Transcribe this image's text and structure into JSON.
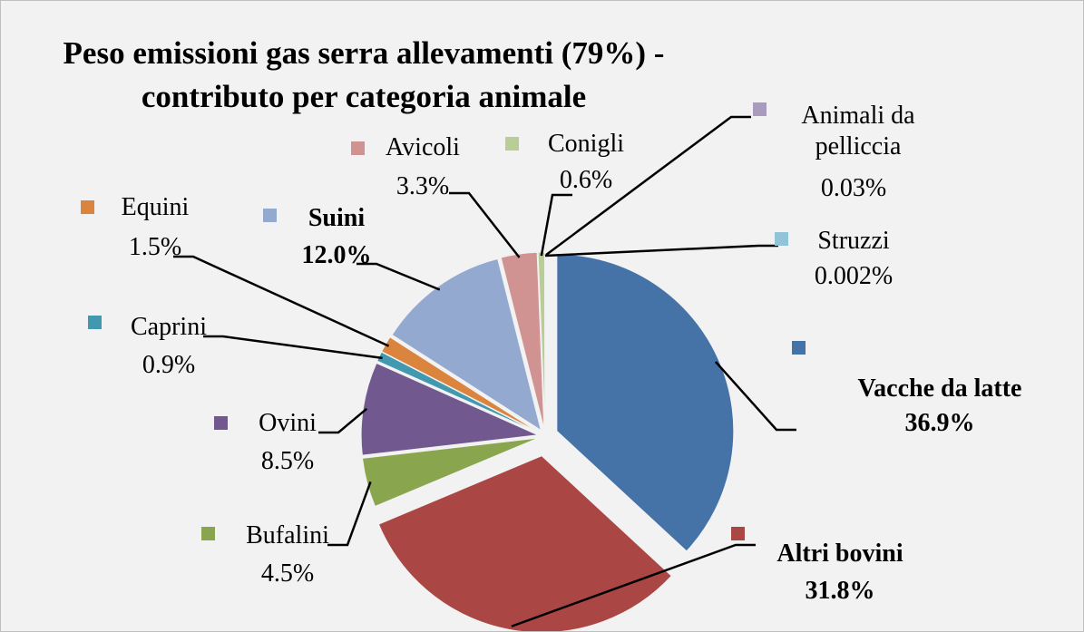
{
  "chart_data": {
    "type": "pie",
    "title": "Peso emissioni gas serra allevamenti (79%) - contributo per categoria animale",
    "categories": [
      "Vacche da latte",
      "Altri bovini",
      "Bufalini",
      "Ovini",
      "Caprini",
      "Equini",
      "Suini",
      "Avicoli",
      "Conigli",
      "Animali da pelliccia",
      "Struzzi"
    ],
    "values": [
      36.9,
      31.8,
      4.5,
      8.5,
      0.9,
      1.5,
      12.0,
      3.3,
      0.6,
      0.03,
      0.002
    ],
    "value_labels": [
      "36.9%",
      "31.8%",
      "4.5%",
      "8.5%",
      "0.9%",
      "1.5%",
      "12.0%",
      "3.3%",
      "0.6%",
      "0.03%",
      "0.002%"
    ],
    "colors": [
      "#4572a7",
      "#aa4643",
      "#89a54e",
      "#71588f",
      "#4198af",
      "#db843d",
      "#93a9cf",
      "#d19392",
      "#b9cd96",
      "#a99bbd",
      "#92c4d8"
    ]
  }
}
